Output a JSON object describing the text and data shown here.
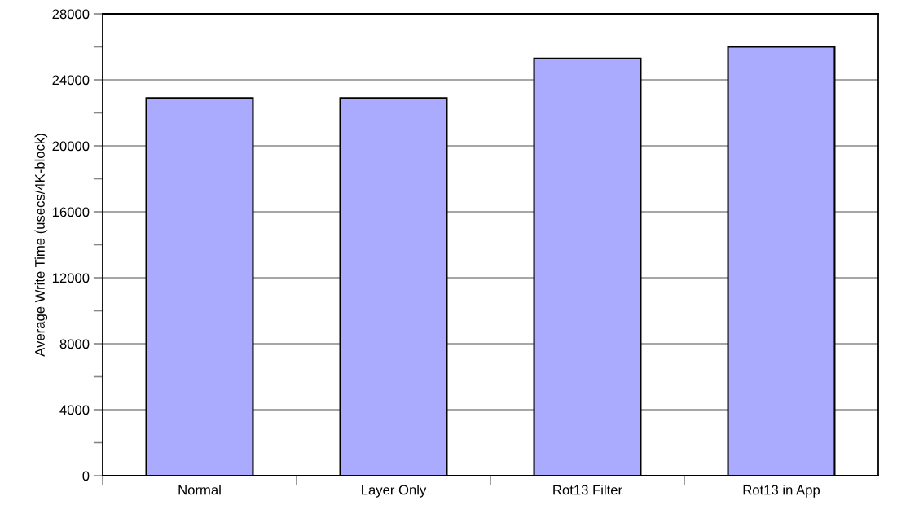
{
  "chart_data": {
    "type": "bar",
    "ylabel": "Average Write Time (usecs/4K-block)",
    "categories": [
      "Normal",
      "Layer Only",
      "Rot13 Filter",
      "Rot13 in App"
    ],
    "values": [
      22900,
      22900,
      25300,
      26000
    ],
    "color": "#aaaaff",
    "ylim": [
      0,
      28000
    ],
    "yticks": [
      0,
      {
        "value": 2000,
        "label": null
      },
      4000,
      {
        "value": 6000,
        "label": null
      },
      8000,
      {
        "value": 10000,
        "label": null
      },
      12000,
      {
        "value": 14000,
        "label": null
      },
      16000,
      {
        "value": 18000,
        "label": null
      },
      20000,
      {
        "value": 22000,
        "label": null
      },
      24000,
      {
        "value": 26000,
        "label": null
      },
      28000
    ],
    "grid": "y",
    "legend": false
  }
}
